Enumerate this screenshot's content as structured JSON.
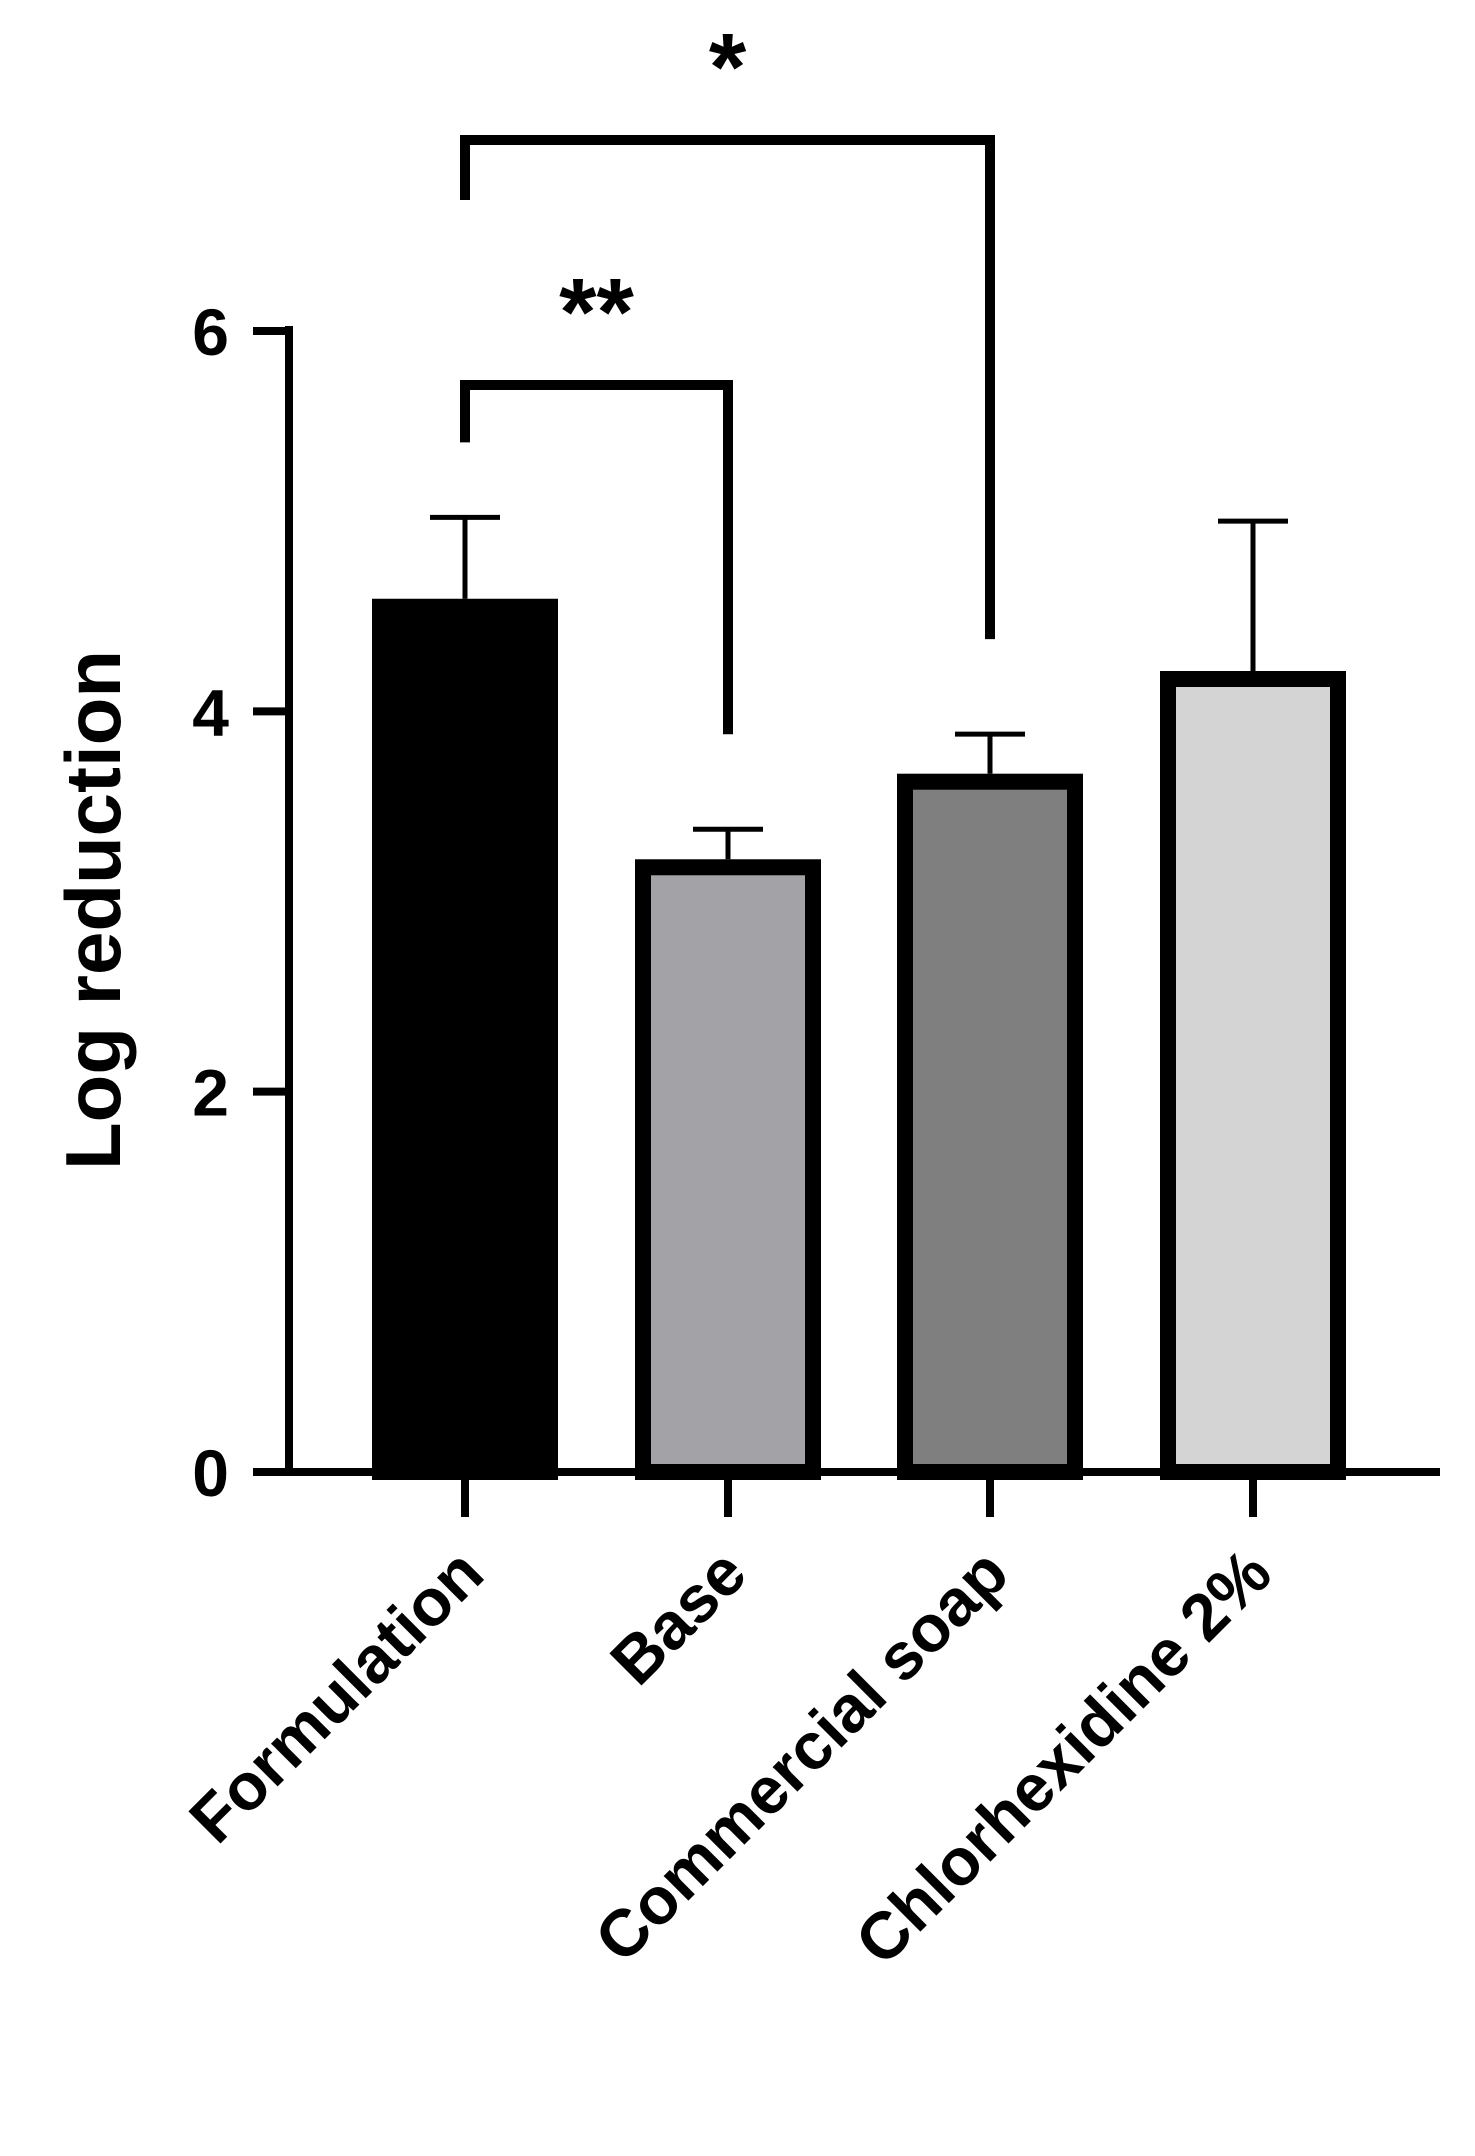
{
  "chart_data": {
    "type": "bar",
    "title": "",
    "xlabel": "",
    "ylabel": "Log reduction",
    "ylim": [
      0,
      6
    ],
    "yticks": [
      0,
      2,
      4,
      6
    ],
    "ytick_labels": [
      "0",
      "2",
      "4",
      "6"
    ],
    "grid": false,
    "legend": "none",
    "categories": [
      "Formulation",
      "Base",
      "Commercial soap",
      "Chlorhexidine 2%"
    ],
    "values": [
      4.55,
      3.18,
      3.63,
      4.17
    ],
    "errors": [
      0.47,
      0.2,
      0.25,
      0.83
    ],
    "bar_colors": [
      "#000000",
      "#a3a3a7",
      "#7f7f7f",
      "#d4d4d4"
    ],
    "bar_edge_color": "#000000",
    "significance": [
      {
        "from": "Formulation",
        "to": "Base",
        "label": "**"
      },
      {
        "from": "Formulation",
        "to": "Commercial soap",
        "label": "*"
      }
    ]
  }
}
